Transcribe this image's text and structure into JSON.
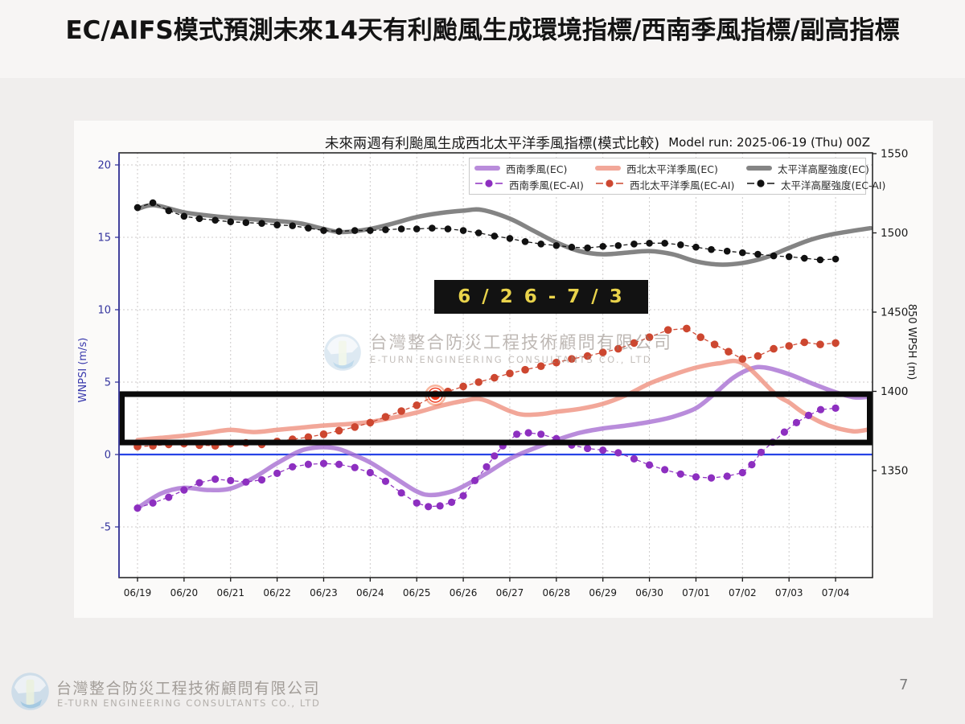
{
  "page": {
    "title": "EC/AIFS模式預測未來14天有利颱風生成環境指標/西南季風指標/副高指標",
    "page_number": "7"
  },
  "chart": {
    "title": "未來兩週有利颱風生成西北太平洋季風指標(模式比較)",
    "model_run": "Model run: 2025-06-19 (Thu) 00Z",
    "period_annotation": "6 / 2 6 - 7 / 3"
  },
  "watermark": {
    "company_zh": "台灣整合防災工程技術顧問有限公司",
    "company_en": "E-TURN ENGINEERING CONSULTANTS CO., LTD"
  },
  "footer": {
    "company_zh": "台灣整合防災工程技術顧問有限公司",
    "company_en": "E-TURN ENGINEERING CONSULTANTS CO., LTD"
  },
  "chart_data": {
    "type": "line",
    "x_ticks": [
      "06/19",
      "06/20",
      "06/21",
      "06/22",
      "06/23",
      "06/24",
      "06/25",
      "06/26",
      "06/27",
      "06/28",
      "06/29",
      "06/30",
      "07/01",
      "07/02",
      "07/03",
      "07/04"
    ],
    "y_left": {
      "label": "WNPSI (m/s)",
      "ticks": [
        20,
        15,
        10,
        5,
        0,
        -5
      ],
      "range": [
        -8.5,
        20.8
      ],
      "color": "#34349e"
    },
    "y_right": {
      "label": "850 WPSH (m)",
      "ticks": [
        1550,
        1500,
        1450,
        1400,
        1350
      ],
      "range": [
        1282,
        1550.5
      ],
      "color": "#1a1a1a"
    },
    "grid": true,
    "legend_position": "top-right",
    "zero_line_color": "#2743e6",
    "rect_annotation": {
      "y_top": 4.17,
      "y_bottom": 0.83,
      "color": "#0a0a0a"
    },
    "highlight_point": {
      "x": 6.4,
      "y": 4.1,
      "color": "#f03b1e"
    },
    "series": [
      {
        "id": "sw_ec",
        "name": "西南季風(EC)",
        "axis": "left",
        "style": "thick",
        "color": "#a86fd2",
        "opacity": 0.8,
        "points": [
          [
            0,
            -3.7
          ],
          [
            0.5,
            -2.7
          ],
          [
            1,
            -2.3
          ],
          [
            1.5,
            -2.45
          ],
          [
            2,
            -2.35
          ],
          [
            2.5,
            -1.6
          ],
          [
            3,
            -0.6
          ],
          [
            3.5,
            0.25
          ],
          [
            3.9,
            0.5
          ],
          [
            4.3,
            0.4
          ],
          [
            4.7,
            -0.1
          ],
          [
            5,
            -0.55
          ],
          [
            5.5,
            -1.55
          ],
          [
            6,
            -2.55
          ],
          [
            6.3,
            -2.8
          ],
          [
            6.7,
            -2.6
          ],
          [
            7,
            -2.2
          ],
          [
            7.5,
            -1.3
          ],
          [
            8,
            -0.3
          ],
          [
            8.5,
            0.4
          ],
          [
            9,
            1.0
          ],
          [
            9.5,
            1.5
          ],
          [
            10,
            1.8
          ],
          [
            10.5,
            2.0
          ],
          [
            11,
            2.25
          ],
          [
            11.5,
            2.6
          ],
          [
            12,
            3.2
          ],
          [
            12.4,
            4.2
          ],
          [
            12.8,
            5.3
          ],
          [
            13.2,
            5.95
          ],
          [
            13.5,
            6.0
          ],
          [
            14,
            5.55
          ],
          [
            14.5,
            4.9
          ],
          [
            15,
            4.3
          ],
          [
            15.4,
            3.95
          ],
          [
            15.75,
            4.0
          ]
        ]
      },
      {
        "id": "nwp_ec",
        "name": "西北太平洋季風(EC)",
        "axis": "left",
        "style": "thick",
        "color": "#ef9180",
        "opacity": 0.8,
        "points": [
          [
            0,
            1.0
          ],
          [
            0.5,
            1.15
          ],
          [
            1,
            1.3
          ],
          [
            1.5,
            1.5
          ],
          [
            2,
            1.7
          ],
          [
            2.5,
            1.55
          ],
          [
            3,
            1.7
          ],
          [
            3.5,
            1.85
          ],
          [
            4,
            2.0
          ],
          [
            4.5,
            2.1
          ],
          [
            5,
            2.25
          ],
          [
            5.5,
            2.55
          ],
          [
            6,
            2.9
          ],
          [
            6.5,
            3.35
          ],
          [
            7,
            3.7
          ],
          [
            7.4,
            3.8
          ],
          [
            8,
            3.0
          ],
          [
            8.3,
            2.75
          ],
          [
            8.7,
            2.8
          ],
          [
            9,
            2.95
          ],
          [
            9.5,
            3.15
          ],
          [
            10,
            3.5
          ],
          [
            10.5,
            4.1
          ],
          [
            11,
            4.9
          ],
          [
            11.5,
            5.5
          ],
          [
            12,
            6.0
          ],
          [
            12.5,
            6.3
          ],
          [
            13,
            6.3
          ],
          [
            13.7,
            4.2
          ],
          [
            14,
            3.6
          ],
          [
            14.3,
            2.9
          ],
          [
            14.7,
            2.2
          ],
          [
            15,
            1.85
          ],
          [
            15.4,
            1.6
          ],
          [
            15.75,
            1.75
          ]
        ]
      },
      {
        "id": "po_ec",
        "name": "太平洋高壓強度(EC)",
        "axis": "right",
        "style": "thick",
        "color": "#777777",
        "opacity": 0.9,
        "points": [
          [
            0,
            1515
          ],
          [
            0.35,
            1517.5
          ],
          [
            1,
            1513
          ],
          [
            1.5,
            1511
          ],
          [
            2,
            1509.5
          ],
          [
            2.5,
            1508.5
          ],
          [
            3,
            1507.5
          ],
          [
            3.5,
            1506
          ],
          [
            4,
            1502.5
          ],
          [
            4.4,
            1500.5
          ],
          [
            5,
            1502.5
          ],
          [
            5.5,
            1506
          ],
          [
            6,
            1510
          ],
          [
            6.5,
            1512.5
          ],
          [
            7,
            1514
          ],
          [
            7.4,
            1514.5
          ],
          [
            8,
            1509
          ],
          [
            8.5,
            1501.5
          ],
          [
            9,
            1494
          ],
          [
            9.5,
            1488.5
          ],
          [
            10,
            1486.5
          ],
          [
            10.5,
            1487.5
          ],
          [
            11,
            1488.5
          ],
          [
            11.5,
            1486.5
          ],
          [
            12,
            1482
          ],
          [
            12.5,
            1480
          ],
          [
            13,
            1481
          ],
          [
            13.5,
            1484.5
          ],
          [
            14,
            1490.5
          ],
          [
            14.5,
            1496
          ],
          [
            15,
            1499.5
          ],
          [
            15.75,
            1503
          ]
        ]
      },
      {
        "id": "sw_ai",
        "name": "西南季風(EC-AI)",
        "axis": "left",
        "style": "dotted",
        "color": "#8d2fc0",
        "marker_r": 4.6,
        "points": [
          [
            0,
            -3.7
          ],
          [
            0.33,
            -3.35
          ],
          [
            0.67,
            -2.95
          ],
          [
            1,
            -2.45
          ],
          [
            1.33,
            -1.95
          ],
          [
            1.67,
            -1.7
          ],
          [
            2,
            -1.8
          ],
          [
            2.33,
            -1.9
          ],
          [
            2.67,
            -1.75
          ],
          [
            3,
            -1.3
          ],
          [
            3.33,
            -0.85
          ],
          [
            3.67,
            -0.68
          ],
          [
            4,
            -0.62
          ],
          [
            4.33,
            -0.68
          ],
          [
            4.67,
            -0.9
          ],
          [
            5,
            -1.25
          ],
          [
            5.33,
            -1.85
          ],
          [
            5.67,
            -2.65
          ],
          [
            6,
            -3.35
          ],
          [
            6.25,
            -3.6
          ],
          [
            6.5,
            -3.55
          ],
          [
            6.75,
            -3.3
          ],
          [
            7,
            -2.85
          ],
          [
            7.25,
            -1.8
          ],
          [
            7.5,
            -0.85
          ],
          [
            7.67,
            -0.1
          ],
          [
            7.85,
            0.6
          ],
          [
            8.15,
            1.4
          ],
          [
            8.4,
            1.5
          ],
          [
            8.67,
            1.4
          ],
          [
            9,
            1.1
          ],
          [
            9.33,
            0.65
          ],
          [
            9.67,
            0.42
          ],
          [
            10,
            0.3
          ],
          [
            10.33,
            0.12
          ],
          [
            10.67,
            -0.3
          ],
          [
            11,
            -0.72
          ],
          [
            11.33,
            -1.05
          ],
          [
            11.67,
            -1.35
          ],
          [
            12,
            -1.55
          ],
          [
            12.33,
            -1.62
          ],
          [
            12.67,
            -1.5
          ],
          [
            13,
            -1.25
          ],
          [
            13.2,
            -0.7
          ],
          [
            13.4,
            0.15
          ],
          [
            13.65,
            0.85
          ],
          [
            13.9,
            1.55
          ],
          [
            14.16,
            2.2
          ],
          [
            14.42,
            2.7
          ],
          [
            14.68,
            3.1
          ],
          [
            15,
            3.2
          ]
        ]
      },
      {
        "id": "nwp_ai",
        "name": "西北太平洋季風(EC-AI)",
        "axis": "left",
        "style": "dotted",
        "color": "#cd4730",
        "marker_r": 4.8,
        "points": [
          [
            0,
            0.55
          ],
          [
            0.33,
            0.6
          ],
          [
            0.67,
            0.7
          ],
          [
            1,
            0.75
          ],
          [
            1.33,
            0.65
          ],
          [
            1.67,
            0.6
          ],
          [
            2,
            0.75
          ],
          [
            2.33,
            0.8
          ],
          [
            2.67,
            0.7
          ],
          [
            3,
            0.9
          ],
          [
            3.33,
            1.05
          ],
          [
            3.67,
            1.2
          ],
          [
            4,
            1.4
          ],
          [
            4.33,
            1.65
          ],
          [
            4.67,
            1.9
          ],
          [
            5,
            2.2
          ],
          [
            5.33,
            2.6
          ],
          [
            5.67,
            3.0
          ],
          [
            6,
            3.4
          ],
          [
            6.4,
            4.1
          ],
          [
            6.67,
            4.35
          ],
          [
            7,
            4.7
          ],
          [
            7.33,
            5.0
          ],
          [
            7.67,
            5.3
          ],
          [
            8,
            5.6
          ],
          [
            8.33,
            5.85
          ],
          [
            8.67,
            6.1
          ],
          [
            9,
            6.35
          ],
          [
            9.33,
            6.6
          ],
          [
            9.67,
            6.8
          ],
          [
            10,
            7.05
          ],
          [
            10.33,
            7.3
          ],
          [
            10.67,
            7.7
          ],
          [
            11,
            8.1
          ],
          [
            11.4,
            8.6
          ],
          [
            11.8,
            8.7
          ],
          [
            12.1,
            8.1
          ],
          [
            12.4,
            7.6
          ],
          [
            12.7,
            7.1
          ],
          [
            13,
            6.6
          ],
          [
            13.33,
            6.8
          ],
          [
            13.67,
            7.3
          ],
          [
            14,
            7.5
          ],
          [
            14.33,
            7.75
          ],
          [
            14.67,
            7.6
          ],
          [
            15,
            7.7
          ]
        ]
      },
      {
        "id": "po_ai",
        "name": "太平洋高壓強度(EC-AI)",
        "axis": "right",
        "style": "dotted",
        "color": "#111111",
        "marker_r": 4.3,
        "points": [
          [
            0,
            1516
          ],
          [
            0.33,
            1519
          ],
          [
            0.67,
            1514
          ],
          [
            1,
            1510.5
          ],
          [
            1.33,
            1509
          ],
          [
            1.67,
            1508
          ],
          [
            2,
            1507
          ],
          [
            2.33,
            1506.5
          ],
          [
            2.67,
            1506
          ],
          [
            3,
            1505
          ],
          [
            3.33,
            1504.5
          ],
          [
            3.67,
            1503
          ],
          [
            4,
            1501.5
          ],
          [
            4.33,
            1501
          ],
          [
            4.67,
            1501.5
          ],
          [
            5,
            1501.5
          ],
          [
            5.33,
            1502
          ],
          [
            5.67,
            1502.5
          ],
          [
            6,
            1502.5
          ],
          [
            6.33,
            1503
          ],
          [
            6.67,
            1502.5
          ],
          [
            7,
            1501.5
          ],
          [
            7.33,
            1500
          ],
          [
            7.67,
            1498
          ],
          [
            8,
            1496.5
          ],
          [
            8.33,
            1494.5
          ],
          [
            8.67,
            1493
          ],
          [
            9,
            1492
          ],
          [
            9.33,
            1491
          ],
          [
            9.67,
            1490.5
          ],
          [
            10,
            1491.5
          ],
          [
            10.33,
            1492
          ],
          [
            10.67,
            1493
          ],
          [
            11,
            1493.5
          ],
          [
            11.33,
            1493.5
          ],
          [
            11.67,
            1492.5
          ],
          [
            12,
            1491
          ],
          [
            12.33,
            1489.5
          ],
          [
            12.67,
            1488.5
          ],
          [
            13,
            1487.5
          ],
          [
            13.33,
            1486.5
          ],
          [
            13.67,
            1485.5
          ],
          [
            14,
            1485
          ],
          [
            14.33,
            1484
          ],
          [
            14.67,
            1483
          ],
          [
            15,
            1483.5
          ]
        ]
      }
    ]
  }
}
